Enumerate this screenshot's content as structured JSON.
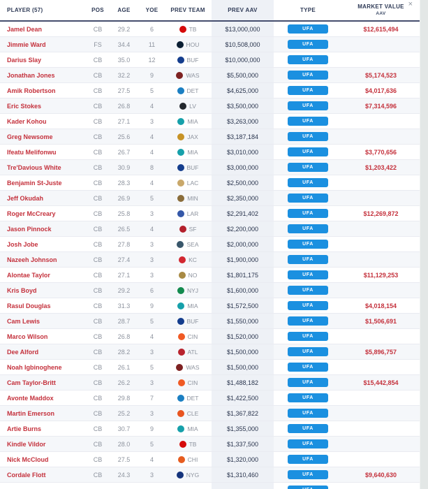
{
  "window": {
    "close_icon": "×"
  },
  "colors": {
    "badge_blue": "#1b90e0",
    "player_red": "#c4313c",
    "market_red": "#c4313c",
    "header_navy": "#2e3a56",
    "header_underline": "#454e6e",
    "prev_aav_column_bg": "#eef1f6",
    "zebra_row_bg": "#f5f7fa",
    "side_strip_bg": "#e3e7e6"
  },
  "table": {
    "columns": {
      "player": "PLAYER (57)",
      "pos": "POS",
      "age": "AGE",
      "yoe": "YOE",
      "prev_team": "PREV TEAM",
      "prev_aav": "PREV AAV",
      "type": "TYPE",
      "market_value_line1": "MARKET VALUE",
      "market_value_line2": "AAV"
    },
    "rows": [
      {
        "player": "Jamel Dean",
        "pos": "CB",
        "age": "29.2",
        "yoe": "6",
        "team": "TB",
        "team_color": "#d50a0a",
        "prev_aav": "$13,000,000",
        "type": "UFA",
        "market_value": "$12,615,494"
      },
      {
        "player": "Jimmie Ward",
        "pos": "FS",
        "age": "34.4",
        "yoe": "11",
        "team": "HOU",
        "team_color": "#0b1f33",
        "prev_aav": "$10,508,000",
        "type": "UFA",
        "market_value": ""
      },
      {
        "player": "Darius Slay",
        "pos": "CB",
        "age": "35.0",
        "yoe": "12",
        "team": "BUF",
        "team_color": "#143d8d",
        "prev_aav": "$10,000,000",
        "type": "UFA",
        "market_value": ""
      },
      {
        "player": "Jonathan Jones",
        "pos": "CB",
        "age": "32.2",
        "yoe": "9",
        "team": "WAS",
        "team_color": "#7e2222",
        "prev_aav": "$5,500,000",
        "type": "UFA",
        "market_value": "$5,174,523"
      },
      {
        "player": "Amik Robertson",
        "pos": "CB",
        "age": "27.5",
        "yoe": "5",
        "team": "DET",
        "team_color": "#1b7fc2",
        "prev_aav": "$4,625,000",
        "type": "UFA",
        "market_value": "$4,017,636"
      },
      {
        "player": "Eric Stokes",
        "pos": "CB",
        "age": "26.8",
        "yoe": "4",
        "team": "LV",
        "team_color": "#23282e",
        "prev_aav": "$3,500,000",
        "type": "UFA",
        "market_value": "$7,314,596"
      },
      {
        "player": "Kader Kohou",
        "pos": "CB",
        "age": "27.1",
        "yoe": "3",
        "team": "MIA",
        "team_color": "#16a0aa",
        "prev_aav": "$3,263,000",
        "type": "UFA",
        "market_value": ""
      },
      {
        "player": "Greg Newsome",
        "pos": "CB",
        "age": "25.6",
        "yoe": "4",
        "team": "JAX",
        "team_color": "#c79326",
        "prev_aav": "$3,187,184",
        "type": "UFA",
        "market_value": ""
      },
      {
        "player": "Ifeatu Melifonwu",
        "pos": "CB",
        "age": "26.7",
        "yoe": "4",
        "team": "MIA",
        "team_color": "#16a0aa",
        "prev_aav": "$3,010,000",
        "type": "UFA",
        "market_value": "$3,770,656"
      },
      {
        "player": "Tre'Davious White",
        "pos": "CB",
        "age": "30.9",
        "yoe": "8",
        "team": "BUF",
        "team_color": "#143d8d",
        "prev_aav": "$3,000,000",
        "type": "UFA",
        "market_value": "$1,203,422"
      },
      {
        "player": "Benjamin St-Juste",
        "pos": "CB",
        "age": "28.3",
        "yoe": "4",
        "team": "LAC",
        "team_color": "#c9a86a",
        "prev_aav": "$2,500,000",
        "type": "UFA",
        "market_value": ""
      },
      {
        "player": "Jeff Okudah",
        "pos": "CB",
        "age": "26.9",
        "yoe": "5",
        "team": "MIN",
        "team_color": "#8a6d3b",
        "prev_aav": "$2,350,000",
        "type": "UFA",
        "market_value": ""
      },
      {
        "player": "Roger McCreary",
        "pos": "CB",
        "age": "25.8",
        "yoe": "3",
        "team": "LAR",
        "team_color": "#3558a8",
        "prev_aav": "$2,291,402",
        "type": "UFA",
        "market_value": "$12,269,872"
      },
      {
        "player": "Jason Pinnock",
        "pos": "CB",
        "age": "26.5",
        "yoe": "4",
        "team": "SF",
        "team_color": "#b3202c",
        "prev_aav": "$2,200,000",
        "type": "UFA",
        "market_value": ""
      },
      {
        "player": "Josh Jobe",
        "pos": "CB",
        "age": "27.8",
        "yoe": "3",
        "team": "SEA",
        "team_color": "#39576b",
        "prev_aav": "$2,000,000",
        "type": "UFA",
        "market_value": ""
      },
      {
        "player": "Nazeeh Johnson",
        "pos": "CB",
        "age": "27.4",
        "yoe": "3",
        "team": "KC",
        "team_color": "#d22730",
        "prev_aav": "$1,900,000",
        "type": "UFA",
        "market_value": ""
      },
      {
        "player": "Alontae Taylor",
        "pos": "CB",
        "age": "27.1",
        "yoe": "3",
        "team": "NO",
        "team_color": "#a88a44",
        "prev_aav": "$1,801,175",
        "type": "UFA",
        "market_value": "$11,129,253"
      },
      {
        "player": "Kris Boyd",
        "pos": "CB",
        "age": "29.2",
        "yoe": "6",
        "team": "NYJ",
        "team_color": "#138a4e",
        "prev_aav": "$1,600,000",
        "type": "UFA",
        "market_value": ""
      },
      {
        "player": "Rasul Douglas",
        "pos": "CB",
        "age": "31.3",
        "yoe": "9",
        "team": "MIA",
        "team_color": "#16a0aa",
        "prev_aav": "$1,572,500",
        "type": "UFA",
        "market_value": "$4,018,154"
      },
      {
        "player": "Cam Lewis",
        "pos": "CB",
        "age": "28.7",
        "yoe": "5",
        "team": "BUF",
        "team_color": "#143d8d",
        "prev_aav": "$1,550,000",
        "type": "UFA",
        "market_value": "$1,506,691"
      },
      {
        "player": "Marco Wilson",
        "pos": "CB",
        "age": "26.8",
        "yoe": "4",
        "team": "CIN",
        "team_color": "#f05a24",
        "prev_aav": "$1,520,000",
        "type": "UFA",
        "market_value": ""
      },
      {
        "player": "Dee Alford",
        "pos": "CB",
        "age": "28.2",
        "yoe": "3",
        "team": "ATL",
        "team_color": "#b8232e",
        "prev_aav": "$1,500,000",
        "type": "UFA",
        "market_value": "$5,896,757"
      },
      {
        "player": "Noah Igbinoghene",
        "pos": "CB",
        "age": "26.1",
        "yoe": "5",
        "team": "WAS",
        "team_color": "#7e2222",
        "prev_aav": "$1,500,000",
        "type": "UFA",
        "market_value": ""
      },
      {
        "player": "Cam Taylor-Britt",
        "pos": "CB",
        "age": "26.2",
        "yoe": "3",
        "team": "CIN",
        "team_color": "#f05a24",
        "prev_aav": "$1,488,182",
        "type": "UFA",
        "market_value": "$15,442,854"
      },
      {
        "player": "Avonte Maddox",
        "pos": "CB",
        "age": "29.8",
        "yoe": "7",
        "team": "DET",
        "team_color": "#1b7fc2",
        "prev_aav": "$1,422,500",
        "type": "UFA",
        "market_value": ""
      },
      {
        "player": "Martin Emerson",
        "pos": "CB",
        "age": "25.2",
        "yoe": "3",
        "team": "CLE",
        "team_color": "#e8541f",
        "prev_aav": "$1,367,822",
        "type": "UFA",
        "market_value": ""
      },
      {
        "player": "Artie Burns",
        "pos": "CB",
        "age": "30.7",
        "yoe": "9",
        "team": "MIA",
        "team_color": "#16a0aa",
        "prev_aav": "$1,355,000",
        "type": "UFA",
        "market_value": ""
      },
      {
        "player": "Kindle Vildor",
        "pos": "CB",
        "age": "28.0",
        "yoe": "5",
        "team": "TB",
        "team_color": "#d50a0a",
        "prev_aav": "$1,337,500",
        "type": "UFA",
        "market_value": ""
      },
      {
        "player": "Nick McCloud",
        "pos": "CB",
        "age": "27.5",
        "yoe": "4",
        "team": "CHI",
        "team_color": "#e65c1f",
        "prev_aav": "$1,320,000",
        "type": "UFA",
        "market_value": ""
      },
      {
        "player": "Cordale Flott",
        "pos": "CB",
        "age": "24.3",
        "yoe": "3",
        "team": "NYG",
        "team_color": "#15347c",
        "prev_aav": "$1,310,460",
        "type": "UFA",
        "market_value": "$9,640,630"
      },
      {
        "player": "",
        "pos": "",
        "age": "",
        "yoe": "",
        "team": "",
        "team_color": "",
        "prev_aav": "",
        "type": "UFA",
        "market_value": ""
      }
    ]
  }
}
